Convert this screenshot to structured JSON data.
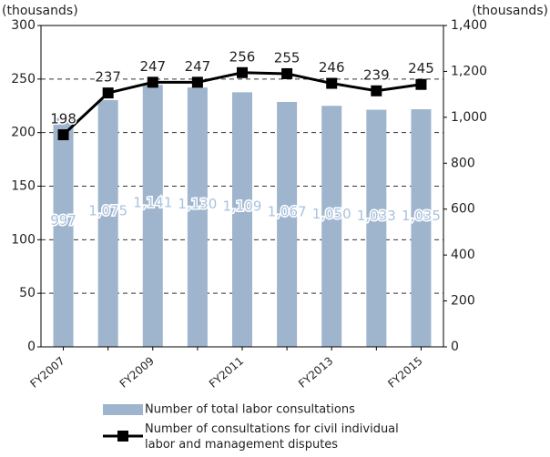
{
  "chart_data": {
    "type": "bar",
    "y_label": "(thousands)",
    "y2_label": "(thousands)",
    "categories": [
      "FY2007",
      null,
      "FY2009",
      null,
      "FY2011",
      null,
      "FY2013",
      null,
      "FY2015"
    ],
    "series": [
      {
        "name": "Number of total labor consultations",
        "type": "bar",
        "axis": "y2",
        "color": "#9fb4cd",
        "values": [
          997,
          1075,
          1141,
          1130,
          1109,
          1067,
          1050,
          1033,
          1035
        ],
        "value_labels": [
          "997",
          "1,075",
          "1,141",
          "1,130",
          "1,109",
          "1,067",
          "1,050",
          "1,033",
          "1,035"
        ]
      },
      {
        "name": "Number of consultations for civil individual labor and management disputes",
        "type": "line",
        "color": "#000000",
        "values": [
          198,
          237,
          247,
          247,
          256,
          255,
          246,
          239,
          245
        ]
      }
    ],
    "ylim": [
      0,
      300
    ],
    "yticks": [
      0,
      50,
      100,
      150,
      200,
      250,
      300
    ],
    "y2lim": [
      0,
      1400
    ],
    "y2ticks": [
      0,
      200,
      400,
      600,
      800,
      {
        "value": 1000,
        "label": "1,000"
      },
      {
        "value": 1200,
        "label": "1,200"
      },
      {
        "value": 1400,
        "label": "1,400"
      }
    ],
    "grid": true
  }
}
